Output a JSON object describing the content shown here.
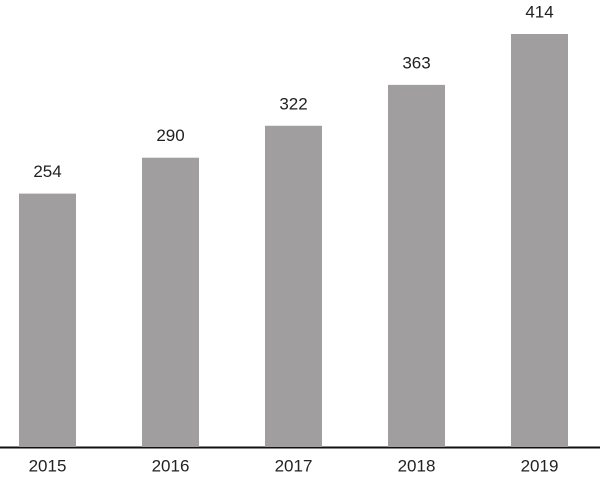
{
  "chart_data": {
    "type": "bar",
    "categories": [
      "2015",
      "2016",
      "2017",
      "2018",
      "2019"
    ],
    "values": [
      254,
      290,
      322,
      363,
      414
    ],
    "color": "#a19e9f"
  }
}
